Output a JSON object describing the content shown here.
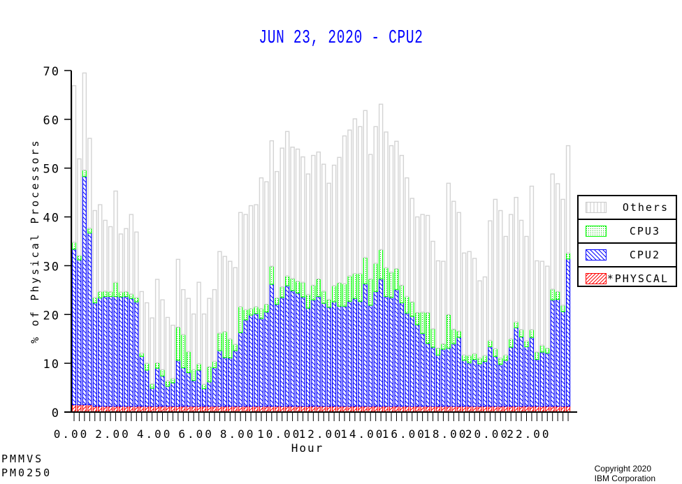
{
  "chart_data": {
    "type": "bar",
    "stacked": true,
    "title": "JUN 23, 2020 - CPU2",
    "xlabel": "Hour",
    "ylabel": "% of Physical Processors",
    "ylim": [
      0,
      70
    ],
    "yticks": [
      0,
      10,
      20,
      30,
      40,
      50,
      60,
      70
    ],
    "xlim": [
      0,
      24
    ],
    "xticks": [
      "0.00",
      "2.00",
      "4.00",
      "6.00",
      "8.00",
      "10.00",
      "12.00",
      "14.00",
      "16.00",
      "18.00",
      "20.00",
      "22.00"
    ],
    "interval_hours": 0.25,
    "grid": false,
    "legend_placement": "right",
    "series": [
      {
        "name": "*PHYSCAL",
        "color": "#ff0000",
        "pattern": "forward-hatch",
        "values": [
          1.5,
          1.5,
          1.5,
          1.5,
          1.2,
          1.2,
          1.2,
          1.2,
          1.2,
          1.2,
          1.2,
          1.2,
          1.2,
          1.2,
          1.2,
          1.2,
          1.2,
          1.2,
          1.2,
          1.2,
          1.2,
          1.2,
          1.2,
          1.2,
          1.2,
          1.2,
          1.2,
          1.2,
          1.2,
          1.2,
          1.2,
          1.2,
          1.2,
          1.2,
          1.2,
          1.2,
          1.2,
          1.2,
          1.2,
          1.2,
          1.2,
          1.2,
          1.2,
          1.2,
          1.2,
          1.2,
          1.2,
          1.2,
          1.2,
          1.2,
          1.2,
          1.2,
          1.2,
          1.2,
          1.2,
          1.2,
          1.2,
          1.2,
          1.2,
          1.2,
          1.2,
          1.2,
          1.2,
          1.2,
          1.2,
          1.2,
          1.2,
          1.2,
          1.2,
          1.2,
          1.2,
          1.2,
          1.2,
          1.2,
          1.2,
          1.2,
          1.2,
          1.2,
          1.2,
          1.2,
          1.2,
          1.2,
          1.2,
          1.2,
          1.2,
          1.2,
          1.2,
          1.2,
          1.2,
          1.2,
          1.2,
          1.2,
          1.2,
          1.2,
          1.2,
          1.2
        ]
      },
      {
        "name": "CPU2",
        "color": "#0000ff",
        "pattern": "back-hatch",
        "values": [
          31.9,
          29.7,
          46.8,
          35.2,
          21.2,
          22.2,
          22.5,
          22.5,
          22.5,
          22.4,
          22.5,
          22.1,
          21.4,
          10.2,
          7.4,
          3.7,
          7.8,
          6.2,
          4.1,
          4.8,
          9.4,
          7.9,
          6.9,
          5.3,
          7.4,
          3.6,
          5.0,
          7.9,
          11.4,
          10.0,
          9.9,
          11.4,
          15.1,
          17.7,
          18.7,
          19.0,
          18.0,
          19.3,
          25.0,
          20.9,
          22.3,
          24.7,
          23.7,
          23.2,
          22.4,
          20.1,
          21.8,
          22.5,
          21.1,
          20.3,
          21.4,
          20.5,
          20.5,
          21.5,
          22.1,
          21.5,
          25.1,
          20.7,
          23.5,
          26.1,
          22.5,
          22.3,
          23.9,
          21.2,
          19.1,
          18.4,
          16.7,
          14.9,
          12.9,
          12.1,
          10.5,
          11.7,
          11.9,
          12.8,
          14.1,
          9.4,
          8.9,
          9.6,
          8.7,
          9.2,
          12.2,
          10.2,
          8.6,
          9.4,
          12.1,
          16.1,
          14.2,
          12.2,
          14.1,
          9.6,
          11.1,
          10.9,
          21.8,
          21.9,
          19.4,
          30.2
        ]
      },
      {
        "name": "CPU3",
        "color": "#00ff00",
        "pattern": "dots",
        "values": [
          1.4,
          0.9,
          1.3,
          1.0,
          1.1,
          1.3,
          1.1,
          1.0,
          2.9,
          1.0,
          1.0,
          0.9,
          0.9,
          0.7,
          1.4,
          0.9,
          1.1,
          1.3,
          1.1,
          0.9,
          6.8,
          6.8,
          4.3,
          2.2,
          1.3,
          0.9,
          3.1,
          1.3,
          3.6,
          5.3,
          3.9,
          1.3,
          5.3,
          2.1,
          1.3,
          1.4,
          2.0,
          1.6,
          3.7,
          1.3,
          2.2,
          2.0,
          2.5,
          2.4,
          3.0,
          2.8,
          3.0,
          3.6,
          2.5,
          1.6,
          3.3,
          4.8,
          4.6,
          5.2,
          5.1,
          5.7,
          5.4,
          5.4,
          5.8,
          6.0,
          5.9,
          5.2,
          4.3,
          3.6,
          3.4,
          3.0,
          2.5,
          4.4,
          6.3,
          3.8,
          1.4,
          1.1,
          6.9,
          3.0,
          1.3,
          1.1,
          1.5,
          1.2,
          1.2,
          1.2,
          1.3,
          1.6,
          1.3,
          1.1,
          1.7,
          1.2,
          1.5,
          1.2,
          1.6,
          1.5,
          1.4,
          1.0,
          2.2,
          1.6,
          1.3,
          1.2
        ]
      },
      {
        "name": "Others",
        "color": "#d3d3d3",
        "pattern": "vertical-lines",
        "values": [
          32.1,
          19.8,
          19.9,
          18.4,
          17.8,
          17.8,
          14.5,
          13.3,
          18.7,
          11.9,
          12.9,
          16.3,
          13.4,
          12.6,
          12.4,
          13.5,
          17.1,
          14.3,
          13.0,
          10.9,
          13.9,
          9.2,
          10.9,
          11.4,
          16.7,
          14.4,
          14.0,
          14.7,
          16.7,
          15.4,
          15.9,
          15.7,
          19.3,
          19.5,
          21.1,
          20.9,
          26.8,
          25.1,
          25.7,
          25.9,
          28.4,
          29.6,
          26.9,
          27.1,
          25.7,
          24.7,
          26.6,
          26.0,
          26.0,
          23.8,
          24.7,
          25.7,
          30.3,
          29.9,
          31.7,
          30.1,
          30.1,
          25.5,
          28.0,
          29.8,
          27.8,
          25.9,
          26.1,
          26.6,
          24.3,
          21.2,
          19.6,
          20.0,
          19.9,
          17.9,
          17.9,
          16.9,
          26.9,
          26.2,
          24.3,
          20.9,
          21.3,
          19.5,
          15.8,
          16.1,
          24.5,
          30.6,
          30.2,
          24.3,
          25.5,
          25.5,
          22.4,
          21.4,
          29.4,
          18.7,
          17.2,
          16.8,
          23.6,
          22.1,
          21.7,
          22.0
        ]
      }
    ],
    "legend": [
      "Others",
      "CPU3",
      "CPU2",
      "*PHYSCAL"
    ]
  },
  "footer": {
    "line1": "PMMVS",
    "line2": "PM0250",
    "copyright1": "Copyright 2020",
    "copyright2": "IBM Corporation"
  }
}
